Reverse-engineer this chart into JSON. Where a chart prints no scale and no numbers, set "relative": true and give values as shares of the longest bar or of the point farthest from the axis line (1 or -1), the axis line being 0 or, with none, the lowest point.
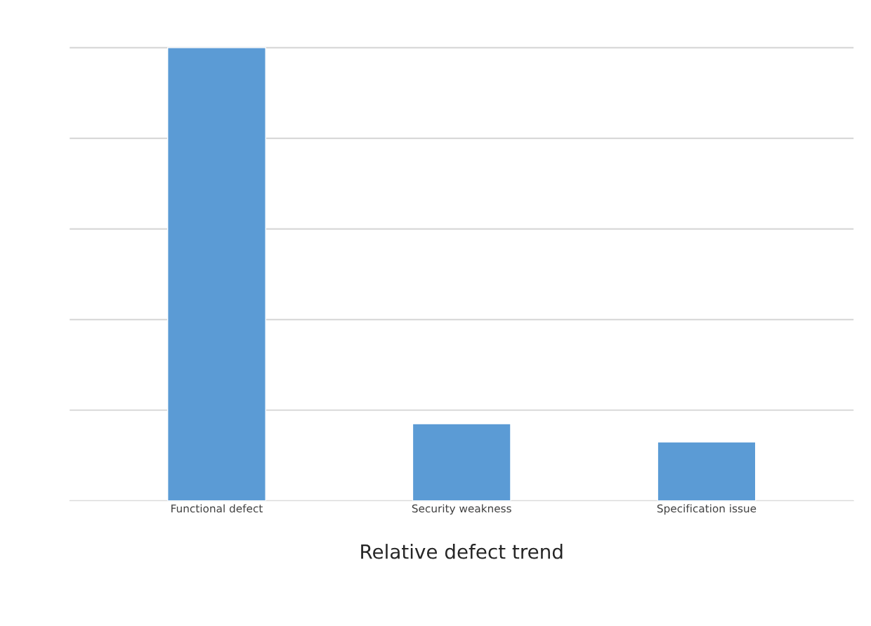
{
  "chart_data": {
    "type": "bar",
    "xlabel": "Relative defect trend",
    "categories": [
      "Functional defect",
      "Security weakness",
      "Specification issue"
    ],
    "values": [
      1,
      0.17,
      0.13
    ],
    "color": "#5b9bd5",
    "relative": true,
    "grid": "y",
    "legend": false
  }
}
